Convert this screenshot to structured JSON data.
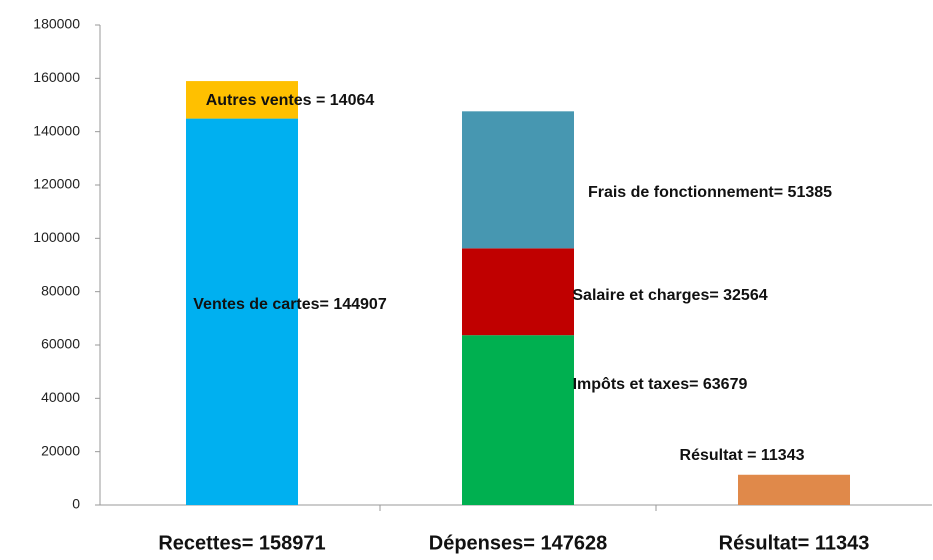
{
  "chart_data": {
    "type": "stacked_bar",
    "categories": [
      "Recettes= 158971",
      "Dépenses= 147628",
      "Résultat= 11343"
    ],
    "series": [
      {
        "color": "#00b0f0",
        "values": [
          144907,
          null,
          null
        ],
        "value_labels": [
          "Ventes de cartes= 144907",
          null,
          null
        ]
      },
      {
        "color": "#ffc000",
        "values": [
          14064,
          null,
          null
        ],
        "value_labels": [
          "Autres ventes =  14064",
          null,
          null
        ]
      },
      {
        "color": "#00b050",
        "values": [
          null,
          63679,
          null
        ],
        "value_labels": [
          null,
          "Impôts et taxes= 63679",
          null
        ]
      },
      {
        "color": "#c00000",
        "values": [
          null,
          32564,
          null
        ],
        "value_labels": [
          null,
          "Salaire  et charges= 32564",
          null
        ]
      },
      {
        "color": "#4797b1",
        "values": [
          null,
          51385,
          null
        ],
        "value_labels": [
          null,
          "Frais de fonctionnement= 51385",
          null
        ]
      },
      {
        "color": "#e0894a",
        "values": [
          null,
          null,
          11343
        ],
        "value_labels": [
          null,
          null,
          "Résultat = 11343"
        ]
      }
    ],
    "ylim": [
      0,
      180000
    ],
    "yticks": [
      0,
      20000,
      40000,
      60000,
      80000,
      100000,
      120000,
      140000,
      160000,
      180000
    ],
    "grid": false
  }
}
